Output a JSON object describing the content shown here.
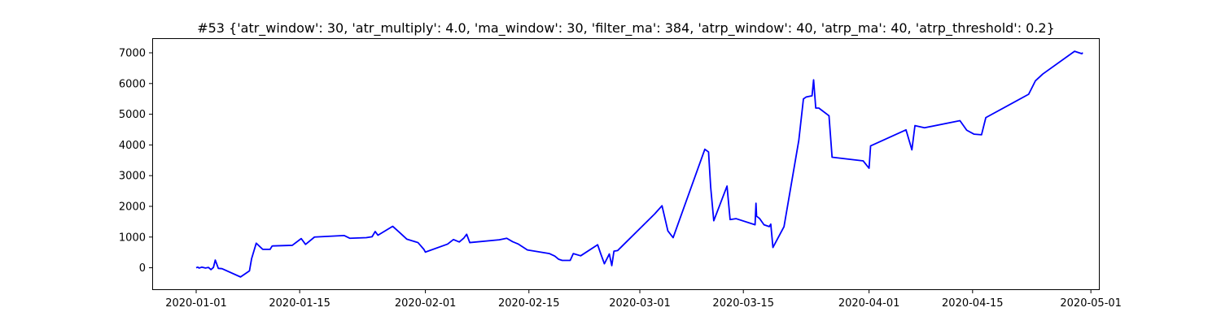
{
  "chart_data": {
    "type": "line",
    "title": "#53 {'atr_window': 30, 'atr_multiply': 4.0, 'ma_window': 30, 'filter_ma': 384, 'atrp_window': 40, 'atrp_ma': 40, 'atrp_threshold': 0.2}",
    "xlabel": "",
    "ylabel": "",
    "x_scale": "date",
    "xlim": [
      "2019-12-26T04:00",
      "2020-05-02T02:00"
    ],
    "ylim": [
      -700,
      7450
    ],
    "x_ticks": [
      "2020-01-01",
      "2020-01-15",
      "2020-02-01",
      "2020-02-15",
      "2020-03-01",
      "2020-03-15",
      "2020-04-01",
      "2020-04-15",
      "2020-05-01"
    ],
    "y_ticks": [
      0,
      1000,
      2000,
      3000,
      4000,
      5000,
      6000,
      7000
    ],
    "grid": false,
    "line_color": "#0000ff",
    "series": [
      {
        "x": [
          "2020-01-01T00:00",
          "2020-01-01T05:00",
          "2020-01-01T10:00",
          "2020-01-01T18:00",
          "2020-01-02T06:00",
          "2020-01-02T16:00",
          "2020-01-03T00:00",
          "2020-01-03T08:00",
          "2020-01-03T14:00",
          "2020-01-04T00:00",
          "2020-01-04T12:00",
          "2020-01-07T00:00",
          "2020-01-08T05:00",
          "2020-01-08T12:00",
          "2020-01-09T03:00",
          "2020-01-10T00:00",
          "2020-01-11T00:00",
          "2020-01-11T06:00",
          "2020-01-11T08:00",
          "2020-01-14T00:00",
          "2020-01-15T05:00",
          "2020-01-15T19:00",
          "2020-01-17T00:00",
          "2020-01-21T00:00",
          "2020-01-21T19:00",
          "2020-01-24T00:00",
          "2020-01-24T19:00",
          "2020-01-25T05:00",
          "2020-01-25T14:00",
          "2020-01-27T14:00",
          "2020-01-28T12:00",
          "2020-01-29T12:00",
          "2020-01-31T00:00",
          "2020-01-31T19:00",
          "2020-02-01T00:00",
          "2020-02-04T00:00",
          "2020-02-04T19:00",
          "2020-02-05T14:00",
          "2020-02-06T05:00",
          "2020-02-06T14:00",
          "2020-02-07T00:00",
          "2020-02-11T00:00",
          "2020-02-12T00:00",
          "2020-02-12T19:00",
          "2020-02-13T14:00",
          "2020-02-14T19:00",
          "2020-02-17T19:00",
          "2020-02-18T12:00",
          "2020-02-19T00:00",
          "2020-02-19T12:00",
          "2020-02-20T00:00",
          "2020-02-20T14:00",
          "2020-02-21T00:00",
          "2020-02-22T00:00",
          "2020-02-24T07:00",
          "2020-02-24T17:00",
          "2020-02-25T05:00",
          "2020-02-25T21:00",
          "2020-02-26T05:00",
          "2020-02-26T12:00",
          "2020-02-27T00:00",
          "2020-03-03T00:00",
          "2020-03-04T00:00",
          "2020-03-04T19:00",
          "2020-03-05T12:00",
          "2020-03-09T19:00",
          "2020-03-10T07:00",
          "2020-03-10T14:00",
          "2020-03-11T00:00",
          "2020-03-12T19:00",
          "2020-03-13T05:00",
          "2020-03-14T00:00",
          "2020-03-16T14:00",
          "2020-03-16T17:00",
          "2020-03-16T19:00",
          "2020-03-17T05:00",
          "2020-03-17T19:00",
          "2020-03-18T12:00",
          "2020-03-18T17:00",
          "2020-03-19T00:00",
          "2020-03-20T12:00",
          "2020-03-22T12:00",
          "2020-03-23T03:00",
          "2020-03-23T12:00",
          "2020-03-24T07:00",
          "2020-03-24T12:00",
          "2020-03-24T19:00",
          "2020-03-25T05:00",
          "2020-03-26T14:00",
          "2020-03-27T00:00",
          "2020-03-31T05:00",
          "2020-04-01T00:00",
          "2020-04-01T05:00",
          "2020-04-06T00:00",
          "2020-04-06T19:00",
          "2020-04-07T05:00",
          "2020-04-08T12:00",
          "2020-04-13T07:00",
          "2020-04-14T05:00",
          "2020-04-15T05:00",
          "2020-04-16T05:00",
          "2020-04-16T19:00",
          "2020-04-22T14:00",
          "2020-04-23T12:00",
          "2020-04-24T12:00",
          "2020-04-28T19:00",
          "2020-04-29T19:00",
          "2020-04-29T21:00"
        ],
        "y": [
          0,
          20,
          -10,
          20,
          -10,
          10,
          -60,
          10,
          250,
          -20,
          -30,
          -300,
          -100,
          300,
          800,
          600,
          600,
          700,
          710,
          730,
          950,
          760,
          1000,
          1050,
          960,
          980,
          1010,
          1180,
          1060,
          1350,
          1150,
          930,
          820,
          600,
          510,
          770,
          920,
          840,
          970,
          1090,
          820,
          910,
          960,
          850,
          770,
          580,
          460,
          380,
          280,
          240,
          240,
          240,
          460,
          390,
          750,
          460,
          130,
          450,
          70,
          540,
          560,
          1750,
          2020,
          1200,
          980,
          3860,
          3770,
          2620,
          1530,
          2660,
          1570,
          1600,
          1400,
          2100,
          1680,
          1600,
          1400,
          1340,
          1420,
          660,
          1340,
          4150,
          5500,
          5560,
          5600,
          6120,
          5200,
          5200,
          4950,
          3600,
          3480,
          3240,
          3970,
          4490,
          3840,
          4630,
          4560,
          4790,
          4480,
          4350,
          4330,
          4890,
          5650,
          6090,
          6310,
          7050,
          6970,
          7010
        ]
      }
    ]
  }
}
